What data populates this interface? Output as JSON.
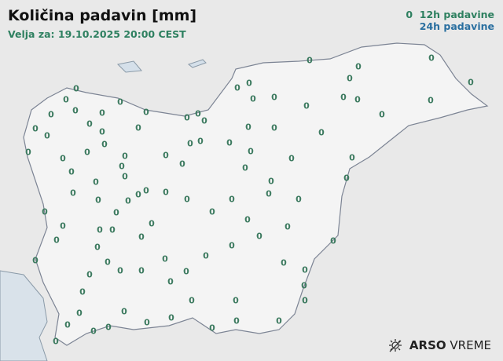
{
  "header": {
    "title": "Količina padavin [mm]",
    "valid_for": "Velja za: 19.10.2025 20:00 CEST"
  },
  "legend": {
    "marker": "0",
    "item_12h": "12h padavine",
    "item_24h": "24h padavine",
    "color_12h": "#2e8060",
    "color_24h": "#2a6fa0"
  },
  "stations": {
    "values": [
      "0",
      "0",
      "0",
      "0",
      "0",
      "0",
      "0",
      "0",
      "0",
      "0",
      "0",
      "0",
      "0",
      "0",
      "0",
      "0",
      "0",
      "0",
      "0",
      "0",
      "0",
      "0",
      "0",
      "0",
      "0",
      "0",
      "0",
      "0",
      "0",
      "0",
      "0",
      "0",
      "0",
      "0",
      "0",
      "0",
      "0",
      "0",
      "0",
      "0",
      "0",
      "0",
      "0",
      "0",
      "0",
      "0",
      "0",
      "0",
      "0",
      "0",
      "0",
      "0",
      "0",
      "0",
      "0",
      "0",
      "0",
      "0",
      "0",
      "0",
      "0",
      "0",
      "0",
      "0",
      "0",
      "0",
      "0",
      "0",
      "0",
      "0",
      "0",
      "0",
      "0",
      "0",
      "0",
      "0",
      "0",
      "0",
      "0",
      "0",
      "0",
      "0",
      "0",
      "0",
      "0",
      "0",
      "0",
      "0",
      "0",
      "0",
      "0",
      "0",
      "0",
      "0",
      "0",
      "0",
      "0",
      "0",
      "0",
      "0",
      "0",
      "0",
      "0",
      "0"
    ]
  },
  "logo": {
    "brand": "ARSO",
    "product": "VREME",
    "icon": "sun-cloud-icon"
  }
}
